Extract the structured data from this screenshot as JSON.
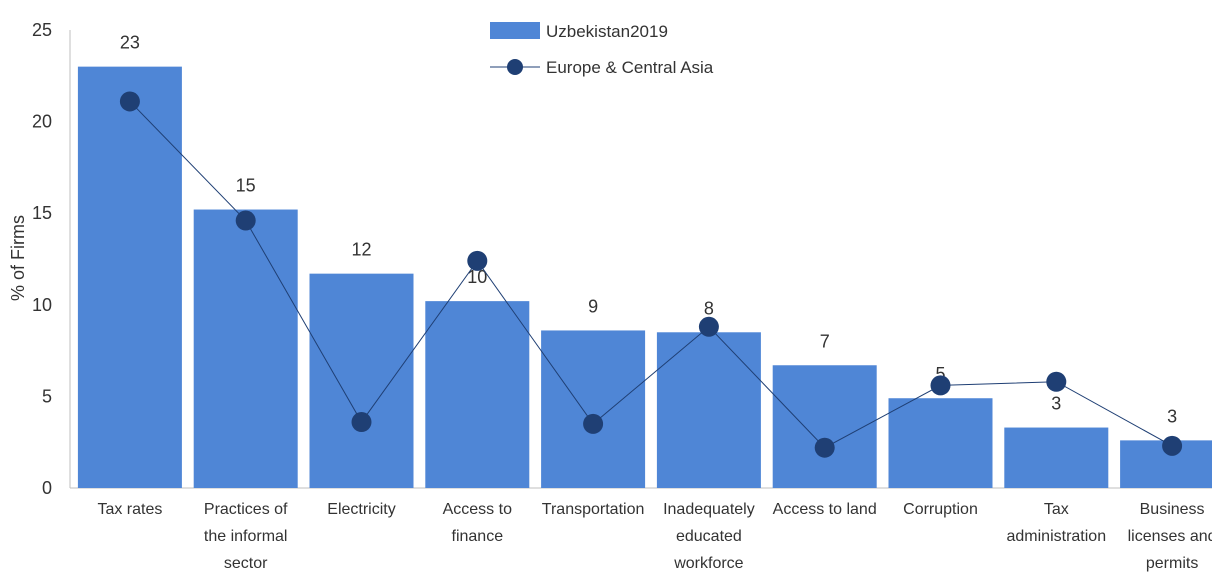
{
  "chart_data": {
    "type": "bar",
    "ylabel": "% of Firms",
    "ylim": [
      0,
      25
    ],
    "yticks": [
      0,
      5,
      10,
      15,
      20,
      25
    ],
    "grid": false,
    "legend_position": "top-center",
    "categories": [
      [
        "Tax rates"
      ],
      [
        "Practices of",
        "the informal",
        "sector"
      ],
      [
        "Electricity"
      ],
      [
        "Access to",
        "finance"
      ],
      [
        "Transportation"
      ],
      [
        "Inadequately",
        "educated",
        "workforce"
      ],
      [
        "Access to land"
      ],
      [
        "Corruption"
      ],
      [
        "Tax",
        "administration"
      ],
      [
        "Business",
        "licenses and",
        "permits"
      ]
    ],
    "series": [
      {
        "name": "Uzbekistan2019",
        "type": "bar",
        "color": "#4f86d6",
        "values": [
          23.0,
          15.2,
          11.7,
          10.2,
          8.6,
          8.5,
          6.7,
          4.9,
          3.3,
          2.6
        ],
        "data_labels": [
          "23",
          "15",
          "12",
          "10",
          "9",
          "8",
          "7",
          "5",
          "3",
          "3"
        ]
      },
      {
        "name": "Europe & Central Asia",
        "type": "line",
        "color": "#1f3f74",
        "values": [
          21.1,
          14.6,
          3.6,
          12.4,
          3.5,
          8.8,
          2.2,
          5.6,
          5.8,
          2.3
        ]
      }
    ]
  }
}
